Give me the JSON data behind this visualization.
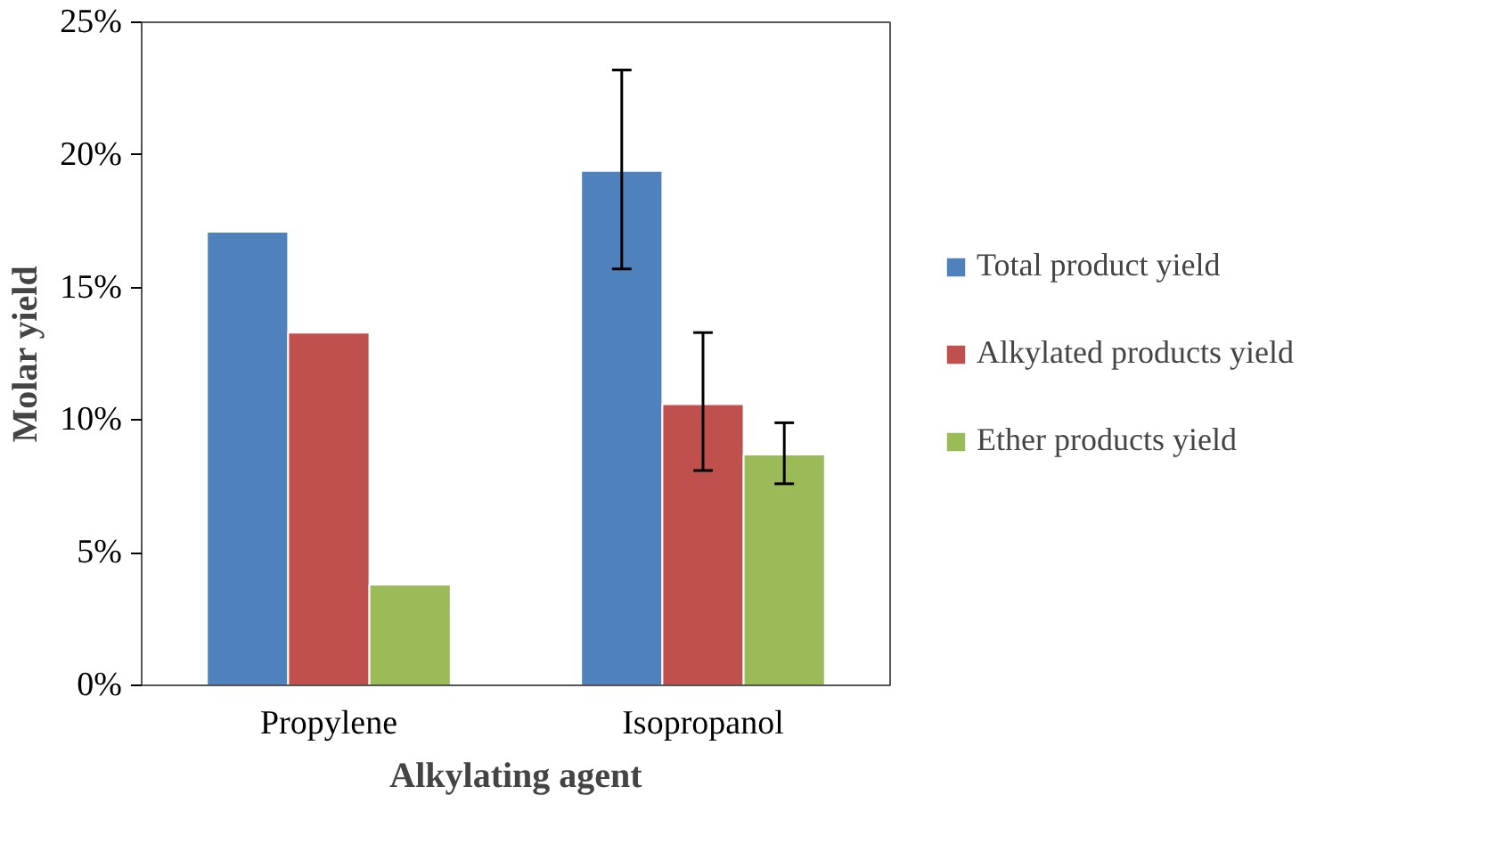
{
  "chart_data": {
    "type": "bar",
    "xlabel": "Alkylating agent",
    "ylabel": "Molar yield",
    "categories": [
      "Propylene",
      "Isopropanol"
    ],
    "series": [
      {
        "name": "Total product yield",
        "color": "#4f81bd",
        "values": [
          17.1,
          19.4
        ],
        "errors": [
          null,
          [
            15.7,
            23.2
          ]
        ]
      },
      {
        "name": "Alkylated products yield",
        "color": "#c0504d",
        "values": [
          13.3,
          10.6
        ],
        "errors": [
          null,
          [
            8.1,
            13.3
          ]
        ]
      },
      {
        "name": "Ether products yield",
        "color": "#9bbb59",
        "values": [
          3.8,
          8.7
        ],
        "errors": [
          null,
          [
            7.6,
            9.9
          ]
        ]
      }
    ],
    "ylim": [
      0,
      25
    ],
    "yticks": [
      {
        "value": 0,
        "label": "0%"
      },
      {
        "value": 5,
        "label": "5%"
      },
      {
        "value": 10,
        "label": "10%"
      },
      {
        "value": 15,
        "label": "15%"
      },
      {
        "value": 20,
        "label": "20%"
      },
      {
        "value": 25,
        "label": "25%"
      }
    ],
    "legend": "right"
  }
}
